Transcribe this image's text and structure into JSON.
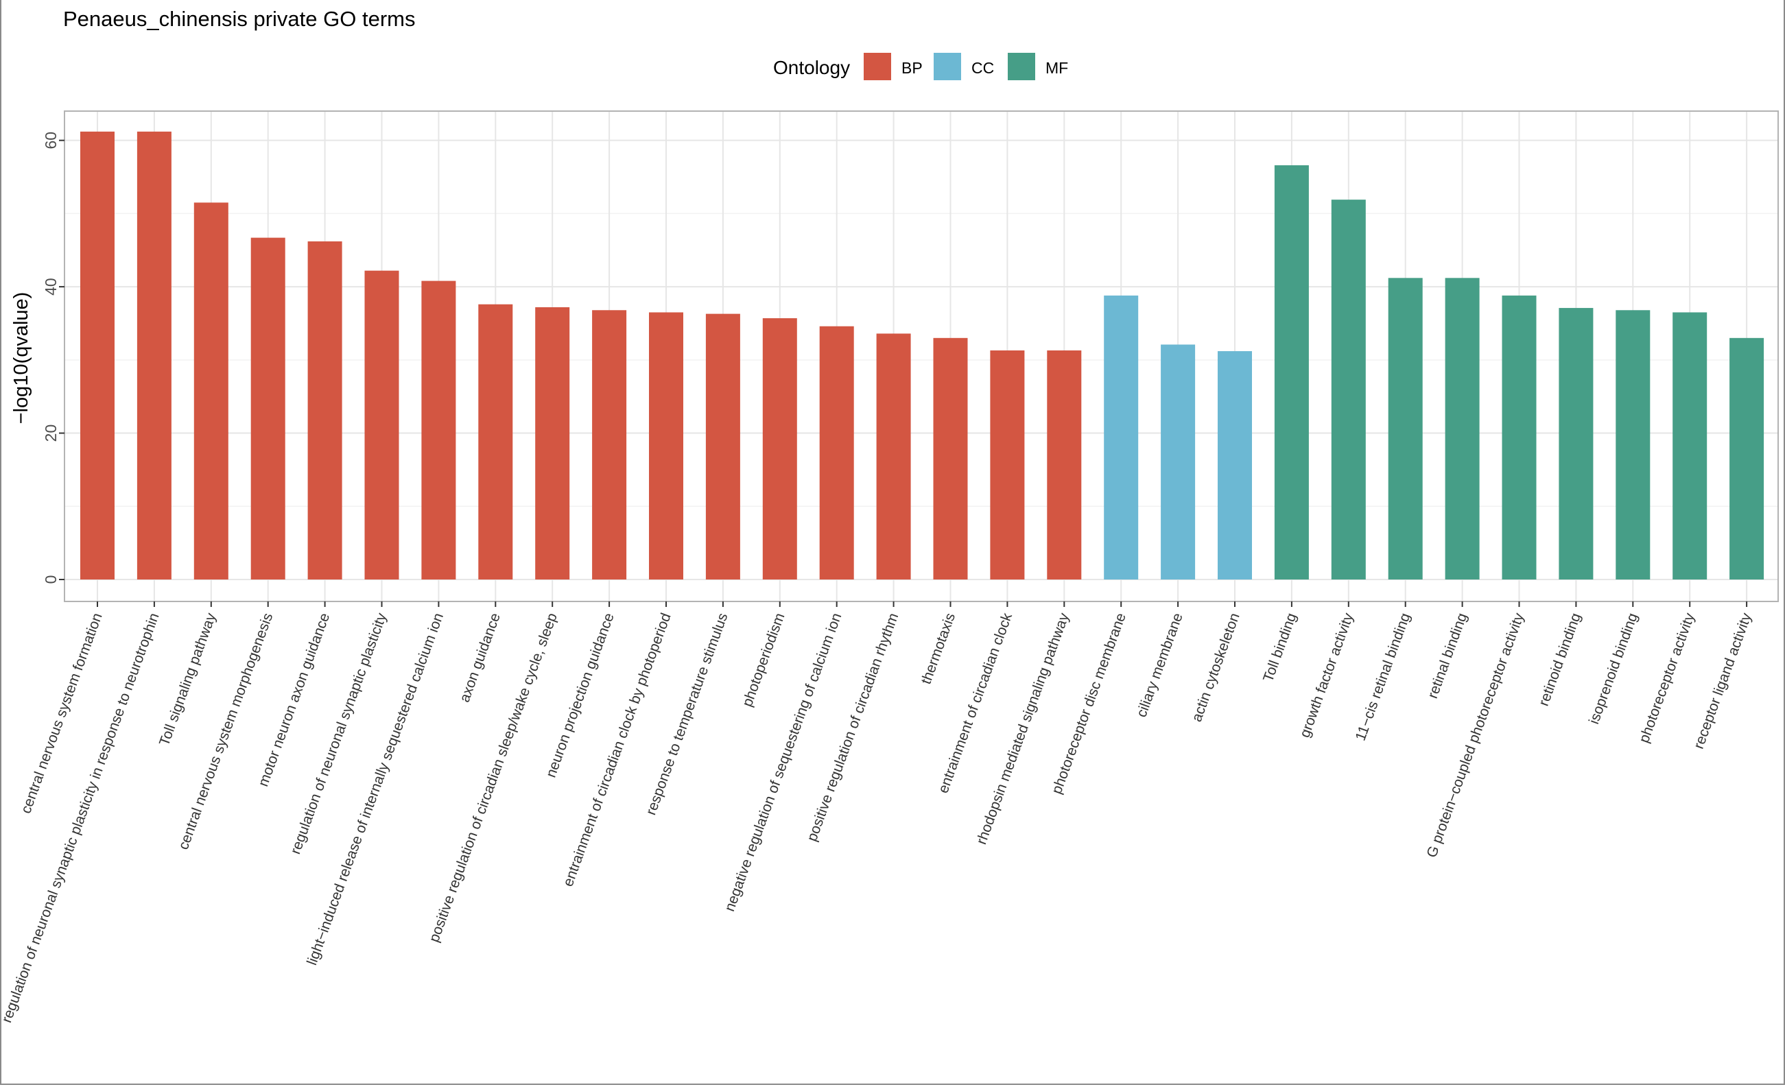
{
  "chart_data": {
    "type": "bar",
    "title": "Penaeus_chinensis private GO terms",
    "xlabel": "",
    "ylabel": "−log10(qvalue)",
    "ylim": [
      -3,
      64
    ],
    "yticks": [
      0,
      20,
      40,
      60
    ],
    "grid": true,
    "legend": {
      "title": "Ontology",
      "position": "top-center",
      "entries": [
        {
          "key": "BP",
          "label": "BP"
        },
        {
          "key": "CC",
          "label": "CC"
        },
        {
          "key": "MF",
          "label": "MF"
        }
      ]
    },
    "categories": [
      "central nervous system formation",
      "regulation of neuronal synaptic plasticity in response to neurotrophin",
      "Toll signaling pathway",
      "central nervous system morphogenesis",
      "motor neuron axon guidance",
      "regulation of neuronal synaptic plasticity",
      "light−induced release of internally sequestered calcium ion",
      "axon guidance",
      "positive regulation of circadian sleep/wake cycle, sleep",
      "neuron projection guidance",
      "entrainment of circadian clock by photoperiod",
      "response to temperature stimulus",
      "photoperiodism",
      "negative regulation of sequestering of calcium ion",
      "positive regulation of circadian rhythm",
      "thermotaxis",
      "entrainment of circadian clock",
      "rhodopsin mediated signaling pathway",
      "photoreceptor disc membrane",
      "ciliary membrane",
      "actin cytoskeleton",
      "Toll binding",
      "growth factor activity",
      "11−cis retinal binding",
      "retinal binding",
      "G protein−coupled photoreceptor activity",
      "retinoid binding",
      "isoprenoid binding",
      "photoreceptor activity",
      "receptor ligand activity"
    ],
    "values": [
      61.2,
      61.2,
      51.5,
      46.7,
      46.2,
      42.2,
      40.8,
      37.6,
      37.2,
      36.8,
      36.5,
      36.3,
      35.7,
      34.6,
      33.6,
      33.0,
      31.3,
      31.3,
      38.8,
      32.1,
      31.2,
      56.6,
      51.9,
      41.2,
      41.2,
      38.8,
      37.1,
      36.8,
      36.5,
      33.0
    ],
    "ontology": [
      "BP",
      "BP",
      "BP",
      "BP",
      "BP",
      "BP",
      "BP",
      "BP",
      "BP",
      "BP",
      "BP",
      "BP",
      "BP",
      "BP",
      "BP",
      "BP",
      "BP",
      "BP",
      "CC",
      "CC",
      "CC",
      "MF",
      "MF",
      "MF",
      "MF",
      "MF",
      "MF",
      "MF",
      "MF",
      "MF"
    ]
  },
  "colors": {
    "BP": "#d35642",
    "CC": "#6cb8d3",
    "MF": "#469e87",
    "panel_border": "#b3b3b3",
    "grid_major": "#e6e6e6",
    "grid_minor": "#f2f2f2",
    "text": "#000000",
    "tick_text": "#4d4d4d"
  }
}
